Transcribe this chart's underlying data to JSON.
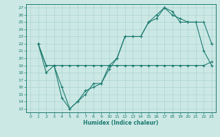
{
  "xlabel": "Humidex (Indice chaleur)",
  "background_color": "#cce8e5",
  "grid_color": "#aad4d0",
  "line_color": "#1a7a6e",
  "xlim": [
    -0.5,
    23.5
  ],
  "ylim": [
    12.5,
    27.5
  ],
  "xticks": [
    0,
    1,
    2,
    3,
    4,
    5,
    6,
    7,
    8,
    9,
    10,
    11,
    12,
    13,
    14,
    15,
    16,
    17,
    18,
    19,
    20,
    21,
    22,
    23
  ],
  "yticks": [
    13,
    14,
    15,
    16,
    17,
    18,
    19,
    20,
    21,
    22,
    23,
    24,
    25,
    26,
    27
  ],
  "series1_x": [
    1,
    2,
    3,
    4,
    5,
    6,
    7,
    8,
    9,
    10,
    11,
    12,
    13,
    14,
    15,
    16,
    17,
    18,
    19,
    20,
    21,
    22,
    23
  ],
  "series1_y": [
    22,
    19,
    19,
    19,
    19,
    19,
    19,
    19,
    19,
    19,
    19,
    19,
    19,
    19,
    19,
    19,
    19,
    19,
    19,
    19,
    19,
    19,
    19.5
  ],
  "series2_x": [
    1,
    2,
    3,
    4,
    5,
    6,
    7,
    8,
    9,
    10,
    11,
    12,
    13,
    14,
    15,
    16,
    17,
    18,
    19,
    20,
    21,
    22,
    23
  ],
  "series2_y": [
    22,
    19,
    19,
    16,
    13,
    14,
    15,
    16.5,
    16.5,
    18.5,
    20,
    23,
    23,
    23,
    25,
    25.5,
    27,
    26.5,
    25,
    25,
    25,
    25,
    22
  ],
  "series3_x": [
    1,
    2,
    3,
    4,
    5,
    6,
    7,
    8,
    9,
    10,
    11,
    12,
    13,
    14,
    15,
    16,
    17,
    18,
    19,
    20,
    21,
    22,
    23
  ],
  "series3_y": [
    22,
    18,
    19,
    14.5,
    13,
    14,
    15.5,
    16,
    16.5,
    19,
    20,
    23,
    23,
    23,
    25,
    26,
    27,
    26,
    25.5,
    25,
    25,
    21,
    19
  ]
}
